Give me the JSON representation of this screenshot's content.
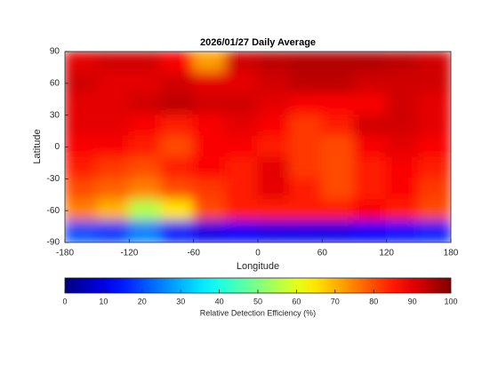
{
  "chart_data": {
    "type": "heatmap",
    "title": "2026/01/27 Daily Average",
    "x_label": "Longitude",
    "y_label": "Latitude",
    "x": [
      -165,
      -135,
      -105,
      -75,
      -45,
      -15,
      15,
      45,
      75,
      105,
      135,
      165
    ],
    "y": [
      80,
      60,
      40,
      20,
      0,
      -20,
      -40,
      -60,
      -80
    ],
    "values": [
      [
        90,
        92,
        92,
        88,
        72,
        92,
        94,
        95,
        95,
        95,
        94,
        92
      ],
      [
        92,
        90,
        90,
        92,
        90,
        90,
        92,
        94,
        94,
        92,
        92,
        92
      ],
      [
        90,
        90,
        92,
        94,
        92,
        92,
        90,
        88,
        88,
        88,
        92,
        90
      ],
      [
        90,
        90,
        88,
        85,
        88,
        90,
        88,
        82,
        85,
        92,
        92,
        90
      ],
      [
        88,
        88,
        85,
        80,
        88,
        88,
        85,
        82,
        80,
        88,
        90,
        88
      ],
      [
        85,
        82,
        80,
        85,
        88,
        85,
        90,
        82,
        80,
        85,
        88,
        85
      ],
      [
        80,
        78,
        75,
        80,
        82,
        85,
        90,
        85,
        80,
        85,
        88,
        82
      ],
      [
        75,
        70,
        55,
        65,
        80,
        85,
        85,
        85,
        85,
        88,
        85,
        80
      ],
      [
        20,
        18,
        25,
        15,
        10,
        12,
        10,
        10,
        10,
        12,
        14,
        15
      ]
    ],
    "xlim": [
      -180,
      180
    ],
    "ylim": [
      -90,
      90
    ],
    "xticks": [
      -180,
      -120,
      -60,
      0,
      60,
      120,
      180
    ],
    "yticks": [
      90,
      60,
      30,
      0,
      -30,
      -60,
      -90
    ],
    "colormap": "jet",
    "colorbar": {
      "label": "Relative Detection Efficiency (%)",
      "clim": [
        0,
        100
      ],
      "ticks": [
        0,
        10,
        20,
        30,
        40,
        50,
        60,
        70,
        80,
        90,
        100
      ]
    }
  }
}
